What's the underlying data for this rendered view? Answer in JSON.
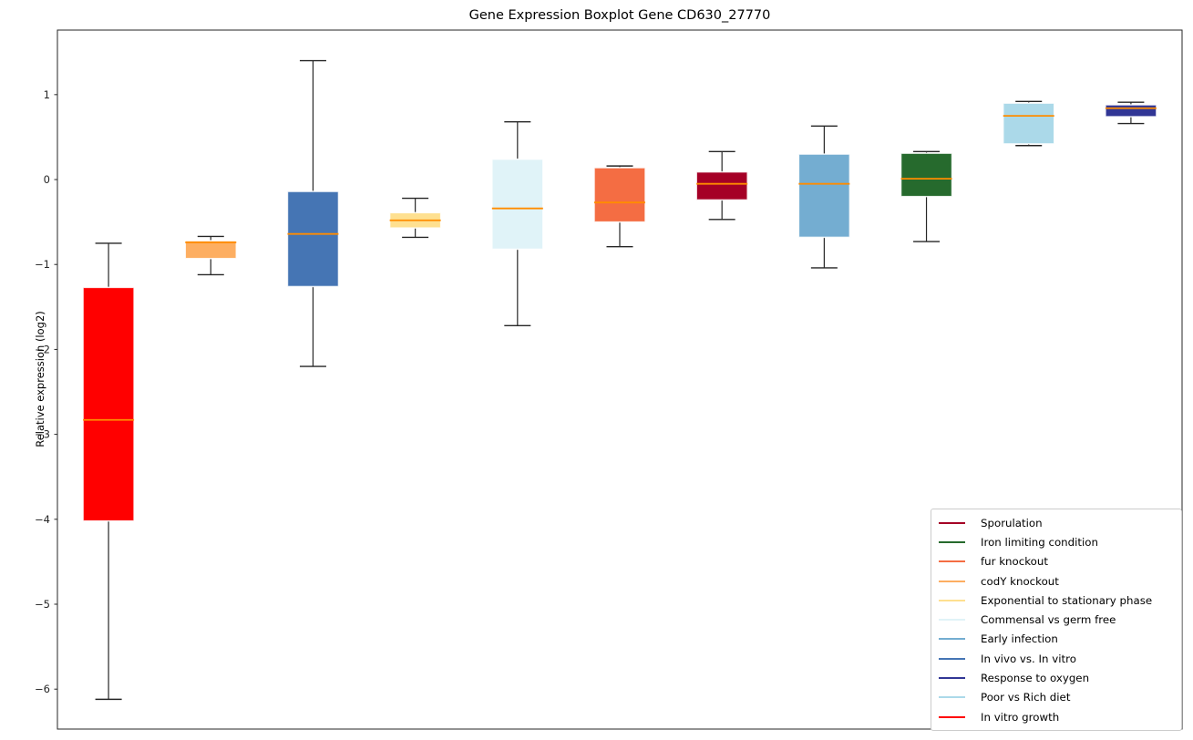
{
  "figure": {
    "background": "#ffffff",
    "axis_color": "#262626"
  },
  "chart_data": {
    "type": "boxplot",
    "title": "Gene Expression Boxplot Gene CD630_27770",
    "xlabel": "",
    "ylabel": "Relative expression (log2)",
    "ylim": [
      -6.47,
      1.76
    ],
    "yticks": [
      1,
      0,
      -1,
      -2,
      -3,
      -4,
      -5,
      -6
    ],
    "grid": false,
    "median_color": "#ff8c00",
    "whisker_color": "#262626",
    "box_edge_color": "#ffffff",
    "series": [
      {
        "label": "In vitro growth",
        "color": "#ff0000",
        "whislo": -6.12,
        "q1": -4.02,
        "med": -2.83,
        "q3": -1.27,
        "whishi": -0.75
      },
      {
        "label": "codY knockout",
        "color": "#fdae61",
        "whislo": -1.12,
        "q1": -0.93,
        "med": -0.74,
        "q3": -0.72,
        "whishi": -0.67
      },
      {
        "label": "In vivo vs. In vitro",
        "color": "#4575b4",
        "whislo": -2.2,
        "q1": -1.26,
        "med": -0.64,
        "q3": -0.14,
        "whishi": 1.4
      },
      {
        "label": "Exponential to stationary phase",
        "color": "#fee090",
        "whislo": -0.68,
        "q1": -0.57,
        "med": -0.48,
        "q3": -0.39,
        "whishi": -0.22
      },
      {
        "label": "Commensal vs germ free",
        "color": "#e0f3f8",
        "whislo": -1.72,
        "q1": -0.82,
        "med": -0.34,
        "q3": 0.24,
        "whishi": 0.68
      },
      {
        "label": "fur knockout",
        "color": "#f46d43",
        "whislo": -0.79,
        "q1": -0.5,
        "med": -0.27,
        "q3": 0.14,
        "whishi": 0.16
      },
      {
        "label": "Sporulation",
        "color": "#a50026",
        "whislo": -0.47,
        "q1": -0.24,
        "med": -0.05,
        "q3": 0.09,
        "whishi": 0.33
      },
      {
        "label": "Early infection",
        "color": "#74add1",
        "whislo": -1.04,
        "q1": -0.68,
        "med": -0.05,
        "q3": 0.3,
        "whishi": 0.63
      },
      {
        "label": "Iron limiting condition",
        "color": "#266a2d",
        "whislo": -0.73,
        "q1": -0.2,
        "med": 0.01,
        "q3": 0.31,
        "whishi": 0.33
      },
      {
        "label": "Poor vs Rich diet",
        "color": "#abd9e9",
        "whislo": 0.4,
        "q1": 0.42,
        "med": 0.75,
        "q3": 0.9,
        "whishi": 0.92
      },
      {
        "label": "Response to oxygen",
        "color": "#313695",
        "whislo": 0.66,
        "q1": 0.74,
        "med": 0.84,
        "q3": 0.88,
        "whishi": 0.91
      }
    ],
    "legend": {
      "position": "lower right",
      "entries": [
        {
          "label": "Sporulation",
          "color": "#a50026"
        },
        {
          "label": "Iron limiting condition",
          "color": "#266a2d"
        },
        {
          "label": "fur knockout",
          "color": "#f46d43"
        },
        {
          "label": "codY knockout",
          "color": "#fdae61"
        },
        {
          "label": "Exponential to stationary phase",
          "color": "#fee090"
        },
        {
          "label": "Commensal vs germ free",
          "color": "#e0f3f8"
        },
        {
          "label": "Early infection",
          "color": "#74add1"
        },
        {
          "label": "In vivo vs. In vitro",
          "color": "#4575b4"
        },
        {
          "label": "Response to oxygen",
          "color": "#313695"
        },
        {
          "label": "Poor vs Rich diet",
          "color": "#abd9e9"
        },
        {
          "label": "In vitro growth",
          "color": "#ff0000"
        }
      ]
    }
  }
}
